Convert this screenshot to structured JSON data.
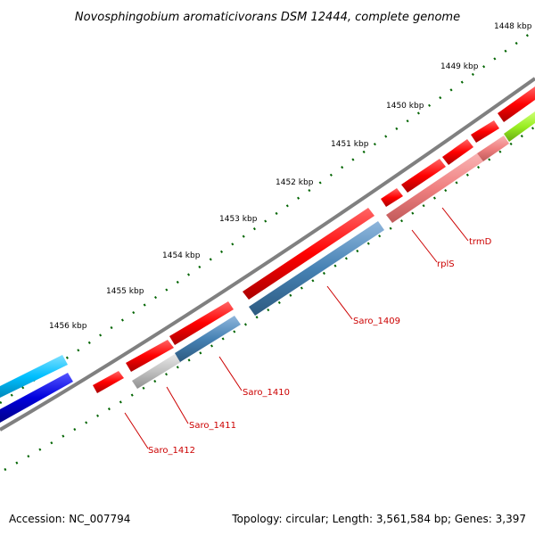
{
  "title": "Novosphingobium aromaticivorans DSM 12444, complete genome",
  "footer": {
    "accession": "Accession: NC_007794",
    "summary": "Topology: circular; Length: 3,561,584 bp; Genes: 3,397"
  },
  "ticks": [
    "1448 kbp",
    "1449 kbp",
    "1450 kbp",
    "1451 kbp",
    "1452 kbp",
    "1453 kbp",
    "1454 kbp",
    "1455 kbp",
    "1456 kbp"
  ],
  "gene_labels": [
    "trmD",
    "rplS",
    "Saro_1409",
    "Saro_1410",
    "Saro_1411",
    "Saro_1412"
  ],
  "colors": {
    "backbone": "#808080",
    "forward_gene": "#ff0000",
    "reverse_gene": "#4682b4",
    "pink_gene": "#f08080",
    "gray_gene": "#c0c0c0",
    "cyan_gene": "#00bfff",
    "blue_gene": "#0000dd",
    "green_gene": "#99ee22",
    "tick": "#006400",
    "label": "#cc0000"
  }
}
